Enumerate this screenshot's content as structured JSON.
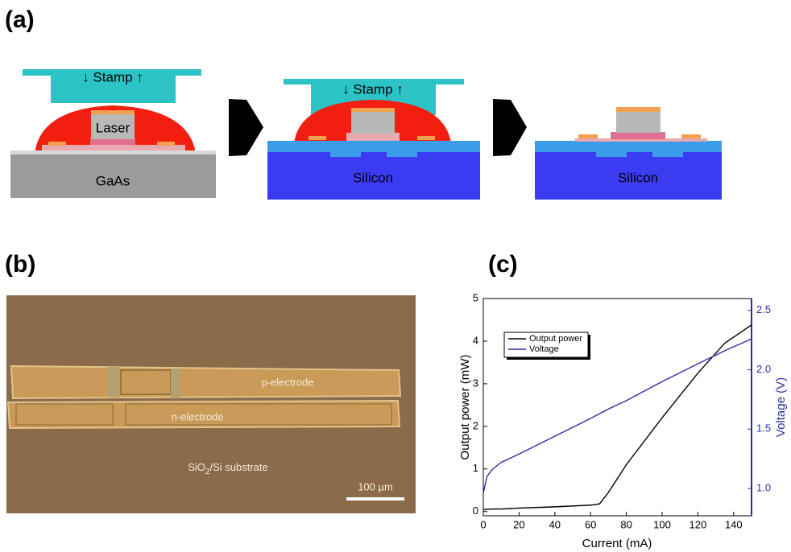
{
  "panel_labels": [
    "(a)",
    "(b)",
    "(c)"
  ],
  "diagram": {
    "step1": {
      "stamp": "↓ Stamp ↑",
      "laser": "Laser",
      "substrate": "GaAs"
    },
    "step2": {
      "stamp": "↓ Stamp ↑",
      "substrate": "Silicon"
    },
    "step3": {
      "substrate": "Silicon"
    }
  },
  "micrograph": {
    "p_electrode": "p-electrode",
    "n_electrode": "n-electrode",
    "substrate": [
      "SiO",
      "2",
      "/Si substrate"
    ],
    "scale_bar": "100 µm"
  },
  "chart_data": {
    "type": "line",
    "x_label": "Current (mA)",
    "y_label": "Output power (mW)",
    "y2_label": "Voltage (V)",
    "x": [
      0,
      2,
      5,
      10,
      20,
      40,
      60,
      65,
      70,
      80,
      100,
      120,
      135,
      150
    ],
    "series": [
      {
        "name": "Output power",
        "color": "#000000",
        "values": [
          0.05,
          0.05,
          0.06,
          0.06,
          0.08,
          0.11,
          0.15,
          0.18,
          0.45,
          1.1,
          2.2,
          3.25,
          3.95,
          4.38
        ]
      },
      {
        "name": "Voltage",
        "color": "#2e2ea8",
        "axis": "y2",
        "values": [
          0.96,
          1.1,
          1.16,
          1.22,
          1.29,
          1.44,
          1.59,
          1.63,
          1.67,
          1.74,
          1.9,
          2.05,
          2.16,
          2.26
        ]
      }
    ],
    "xlim": [
      0,
      150
    ],
    "xticks": [
      0,
      20,
      40,
      60,
      80,
      100,
      120,
      140
    ],
    "ylim": [
      -0.1,
      5
    ],
    "yticks": [
      0,
      1,
      2,
      3,
      4,
      5
    ],
    "y2lim": [
      0.77,
      2.6
    ],
    "y2ticks": [
      {
        "value": 1.0,
        "label": "1.0"
      },
      1.5,
      {
        "value": 2.0,
        "label": "2.0"
      },
      2.5
    ],
    "y2_color": "#2e2ea8",
    "legend": "upper left"
  }
}
